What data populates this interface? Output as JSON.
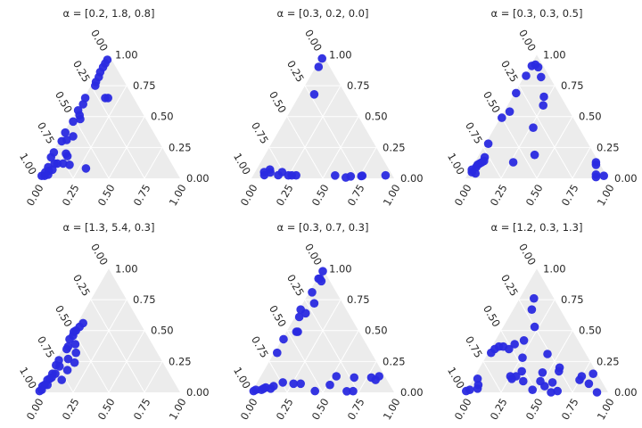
{
  "chart_data": [
    {
      "type": "scatter",
      "subtype": "ternary",
      "title": "α = [0.2, 1.8, 0.8]",
      "ticks": [
        "0.00",
        "0.25",
        "0.50",
        "0.75",
        "1.00"
      ],
      "grid": true,
      "points": [
        [
          0.82,
          0.06,
          0.12
        ],
        [
          0.8,
          0.08,
          0.12
        ],
        [
          0.76,
          0.12,
          0.12
        ],
        [
          0.72,
          0.17,
          0.11
        ],
        [
          0.7,
          0.12,
          0.18
        ],
        [
          0.62,
          0.3,
          0.08
        ],
        [
          0.96,
          0.02,
          0.02
        ],
        [
          0.94,
          0.04,
          0.02
        ],
        [
          0.92,
          0.03,
          0.05
        ],
        [
          0.91,
          0.06,
          0.03
        ],
        [
          0.89,
          0.05,
          0.06
        ],
        [
          0.88,
          0.03,
          0.09
        ],
        [
          0.86,
          0.07,
          0.07
        ],
        [
          0.82,
          0.01,
          0.17
        ],
        [
          0.78,
          0.01,
          0.21
        ],
        [
          0.7,
          0.1,
          0.2
        ],
        [
          0.68,
          0.02,
          0.3
        ],
        [
          0.64,
          0.05,
          0.31
        ],
        [
          0.62,
          0.01,
          0.37
        ],
        [
          0.58,
          0.08,
          0.34
        ],
        [
          0.52,
          0.02,
          0.46
        ],
        [
          0.46,
          0.06,
          0.48
        ],
        [
          0.45,
          0.04,
          0.51
        ],
        [
          0.44,
          0.01,
          0.55
        ],
        [
          0.38,
          0.02,
          0.6
        ],
        [
          0.34,
          0.01,
          0.65
        ],
        [
          0.2,
          0.15,
          0.65
        ],
        [
          0.18,
          0.17,
          0.65
        ],
        [
          0.22,
          0.03,
          0.75
        ],
        [
          0.2,
          0.02,
          0.78
        ],
        [
          0.16,
          0.02,
          0.82
        ],
        [
          0.13,
          0.01,
          0.86
        ],
        [
          0.09,
          0.01,
          0.9
        ],
        [
          0.06,
          0.01,
          0.93
        ],
        [
          0.03,
          0.01,
          0.96
        ]
      ]
    },
    {
      "type": "scatter",
      "subtype": "ternary",
      "title": "α = [0.3, 0.2, 0.0]",
      "ticks": [
        "0.00",
        "0.25",
        "0.50",
        "0.75",
        "1.00"
      ],
      "grid": true,
      "points": [
        [
          0.5,
          0.98,
          0.01
        ],
        [
          0.38,
          0.88,
          0.02
        ],
        [
          0.25,
          0.86,
          0.02
        ],
        [
          0.04,
          0.77,
          0.02
        ],
        [
          0.2,
          0.72,
          0.02
        ],
        [
          0.35,
          0.5,
          0.02
        ],
        [
          0.56,
          0.25,
          0.02
        ],
        [
          0.6,
          0.23,
          0.02
        ],
        [
          0.62,
          0.21,
          0.02
        ],
        [
          0.6,
          0.15,
          0.04
        ],
        [
          0.64,
          0.14,
          0.02
        ],
        [
          0.71,
          0.08,
          0.06
        ],
        [
          0.7,
          0.06,
          0.02
        ],
        [
          0.7,
          0.09,
          0.04
        ],
        [
          0.7,
          0.05,
          0.04
        ],
        [
          0.22,
          0.1,
          0.68
        ],
        [
          0.08,
          0.02,
          0.92
        ],
        [
          0.02,
          0.01,
          0.97
        ]
      ]
    },
    {
      "type": "scatter",
      "subtype": "ternary",
      "title": "α = [0.3, 0.3, 0.5]",
      "ticks": [
        "0.00",
        "0.25",
        "0.50",
        "0.75",
        "1.00"
      ],
      "grid": true,
      "points": [
        [
          0.02,
          0.96,
          0.02
        ],
        [
          0.07,
          0.9,
          0.03
        ],
        [
          0.08,
          0.91,
          0.01
        ],
        [
          0.03,
          0.86,
          0.11
        ],
        [
          0.02,
          0.85,
          0.13
        ],
        [
          0.42,
          0.39,
          0.19
        ],
        [
          0.32,
          0.27,
          0.41
        ],
        [
          0.16,
          0.25,
          0.59
        ],
        [
          0.12,
          0.22,
          0.66
        ],
        [
          0.06,
          0.12,
          0.82
        ],
        [
          0.42,
          0.04,
          0.54
        ],
        [
          0.6,
          0.27,
          0.13
        ],
        [
          0.04,
          0.06,
          0.9
        ],
        [
          0.05,
          0.03,
          0.92
        ],
        [
          0.08,
          0.01,
          0.91
        ],
        [
          0.16,
          0.01,
          0.83
        ],
        [
          0.3,
          0.01,
          0.69
        ],
        [
          0.5,
          0.01,
          0.49
        ],
        [
          0.7,
          0.02,
          0.28
        ],
        [
          0.78,
          0.05,
          0.17
        ],
        [
          0.8,
          0.06,
          0.14
        ],
        [
          0.82,
          0.05,
          0.13
        ],
        [
          0.84,
          0.04,
          0.12
        ],
        [
          0.86,
          0.03,
          0.11
        ],
        [
          0.88,
          0.03,
          0.09
        ],
        [
          0.91,
          0.05,
          0.04
        ],
        [
          0.93,
          0.02,
          0.05
        ],
        [
          0.92,
          0.01,
          0.07
        ]
      ]
    },
    {
      "type": "scatter",
      "subtype": "ternary",
      "title": "α = [1.3, 5.4, 0.3]",
      "ticks": [
        "0.00",
        "0.25",
        "0.50",
        "0.75",
        "1.00"
      ],
      "grid": true,
      "points": [
        [
          0.52,
          0.02,
          0.46
        ],
        [
          0.54,
          0.07,
          0.39
        ],
        [
          0.62,
          0.03,
          0.35
        ],
        [
          0.65,
          0.08,
          0.27
        ],
        [
          0.72,
          0.02,
          0.26
        ],
        [
          0.74,
          0.05,
          0.21
        ],
        [
          0.76,
          0.02,
          0.22
        ],
        [
          0.8,
          0.05,
          0.15
        ],
        [
          0.82,
          0.03,
          0.15
        ],
        [
          0.84,
          0.04,
          0.12
        ],
        [
          0.86,
          0.03,
          0.11
        ],
        [
          0.88,
          0.02,
          0.1
        ],
        [
          0.9,
          0.04,
          0.06
        ],
        [
          0.92,
          0.02,
          0.06
        ],
        [
          0.94,
          0.01,
          0.05
        ],
        [
          0.96,
          0.02,
          0.02
        ],
        [
          0.98,
          0.01,
          0.01
        ],
        [
          0.78,
          0.12,
          0.1
        ],
        [
          0.7,
          0.12,
          0.18
        ],
        [
          0.62,
          0.14,
          0.24
        ],
        [
          0.57,
          0.11,
          0.32
        ],
        [
          0.6,
          0.03,
          0.37
        ],
        [
          0.56,
          0.01,
          0.43
        ],
        [
          0.5,
          0.01,
          0.49
        ],
        [
          0.48,
          0.02,
          0.5
        ],
        [
          0.44,
          0.03,
          0.53
        ],
        [
          0.4,
          0.04,
          0.56
        ]
      ]
    },
    {
      "type": "scatter",
      "subtype": "ternary",
      "title": "α = [0.3, 0.7, 0.3]",
      "ticks": [
        "0.00",
        "0.25",
        "0.50",
        "0.75",
        "1.00"
      ],
      "grid": true,
      "points": [
        [
          0.04,
          0.83,
          0.13
        ],
        [
          0.08,
          0.82,
          0.1
        ],
        [
          0.1,
          0.78,
          0.12
        ],
        [
          0.38,
          0.77,
          0.01
        ],
        [
          0.3,
          0.75,
          0.01
        ],
        [
          0.22,
          0.66,
          0.12
        ],
        [
          0.34,
          0.53,
          0.13
        ],
        [
          0.42,
          0.52,
          0.06
        ],
        [
          0.55,
          0.44,
          0.01
        ],
        [
          0.62,
          0.31,
          0.07
        ],
        [
          0.67,
          0.26,
          0.07
        ],
        [
          0.74,
          0.18,
          0.08
        ],
        [
          0.82,
          0.13,
          0.05
        ],
        [
          0.85,
          0.12,
          0.03
        ],
        [
          0.88,
          0.08,
          0.04
        ],
        [
          0.9,
          0.07,
          0.03
        ],
        [
          0.92,
          0.06,
          0.02
        ],
        [
          0.96,
          0.02,
          0.02
        ],
        [
          0.98,
          0.01,
          0.01
        ],
        [
          0.43,
          0.08,
          0.49
        ],
        [
          0.32,
          0.01,
          0.67
        ],
        [
          0.06,
          0.04,
          0.9
        ],
        [
          0.06,
          0.02,
          0.92
        ],
        [
          0.07,
          0.01,
          0.92
        ],
        [
          0.66,
          0.02,
          0.32
        ],
        [
          0.56,
          0.01,
          0.43
        ],
        [
          0.44,
          0.07,
          0.49
        ],
        [
          0.36,
          0.03,
          0.61
        ],
        [
          0.3,
          0.06,
          0.64
        ],
        [
          0.2,
          0.08,
          0.72
        ],
        [
          0.01,
          0.01,
          0.98
        ],
        [
          0.17,
          0.02,
          0.81
        ]
      ]
    },
    {
      "type": "scatter",
      "subtype": "ternary",
      "title": "α = [1.2, 0.3, 1.3]",
      "ticks": [
        "0.00",
        "0.25",
        "0.50",
        "0.75",
        "1.00"
      ],
      "grid": true,
      "points": [
        [
          0.08,
          0.94,
          0.0
        ],
        [
          0.1,
          0.83,
          0.07
        ],
        [
          0.03,
          0.82,
          0.15
        ],
        [
          0.15,
          0.75,
          0.1
        ],
        [
          0.12,
          0.75,
          0.13
        ],
        [
          0.35,
          0.64,
          0.01
        ],
        [
          0.4,
          0.6,
          0.0
        ],
        [
          0.26,
          0.57,
          0.17
        ],
        [
          0.27,
          0.42,
          0.31
        ],
        [
          0.24,
          0.56,
          0.2
        ],
        [
          0.35,
          0.57,
          0.08
        ],
        [
          0.42,
          0.53,
          0.05
        ],
        [
          0.43,
          0.48,
          0.09
        ],
        [
          0.38,
          0.46,
          0.16
        ],
        [
          0.52,
          0.46,
          0.02
        ],
        [
          0.55,
          0.36,
          0.09
        ],
        [
          0.58,
          0.29,
          0.13
        ],
        [
          0.62,
          0.27,
          0.11
        ],
        [
          0.62,
          0.25,
          0.13
        ],
        [
          0.52,
          0.31,
          0.17
        ],
        [
          0.46,
          0.26,
          0.28
        ],
        [
          0.38,
          0.2,
          0.42
        ],
        [
          0.46,
          0.15,
          0.39
        ],
        [
          0.52,
          0.13,
          0.35
        ],
        [
          0.55,
          0.08,
          0.37
        ],
        [
          0.58,
          0.05,
          0.37
        ],
        [
          0.62,
          0.03,
          0.35
        ],
        [
          0.66,
          0.02,
          0.32
        ],
        [
          0.86,
          0.03,
          0.11
        ],
        [
          0.9,
          0.07,
          0.03
        ],
        [
          0.96,
          0.02,
          0.02
        ],
        [
          0.99,
          0.0,
          0.01
        ],
        [
          0.88,
          0.06,
          0.06
        ],
        [
          0.25,
          0.22,
          0.53
        ],
        [
          0.2,
          0.13,
          0.67
        ],
        [
          0.14,
          0.1,
          0.76
        ]
      ]
    }
  ]
}
